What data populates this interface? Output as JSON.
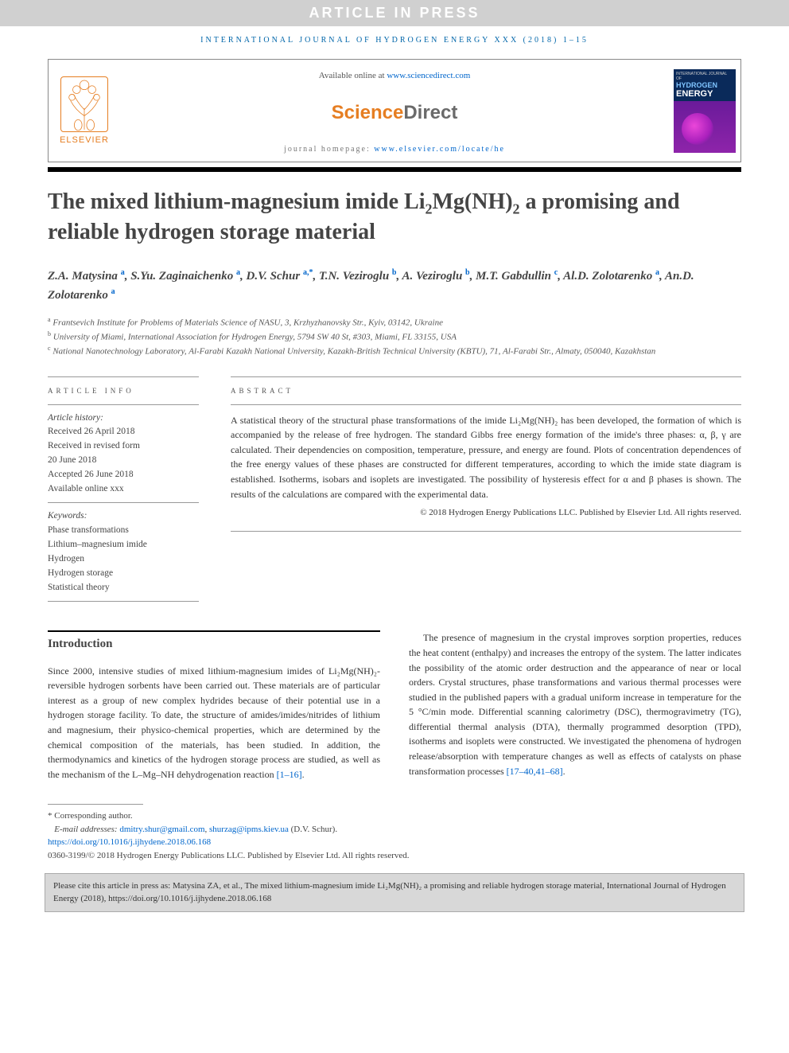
{
  "banner": "ARTICLE IN PRESS",
  "running_head": "INTERNATIONAL JOURNAL OF HYDROGEN ENERGY XXX (2018) 1–15",
  "header": {
    "elsevier": "ELSEVIER",
    "available": "Available online at ",
    "sd_url": "www.sciencedirect.com",
    "sd_word1": "Science",
    "sd_word2": "Direct",
    "homepage_label": "journal homepage: ",
    "homepage_url": "www.elsevier.com/locate/he",
    "cover_line1": "INTERNATIONAL JOURNAL OF",
    "cover_line2": "HYDROGEN",
    "cover_line3": "ENERGY"
  },
  "title_parts": {
    "p1": "The mixed lithium-magnesium imide Li",
    "s1": "2",
    "p2": "Mg(NH)",
    "s2": "2",
    "p3": " a promising and reliable hydrogen storage material"
  },
  "authors": [
    {
      "name": "Z.A. Matysina",
      "aff": "a"
    },
    {
      "name": "S.Yu. Zaginaichenko",
      "aff": "a"
    },
    {
      "name": "D.V. Schur",
      "aff": "a,*"
    },
    {
      "name": "T.N. Veziroglu",
      "aff": "b"
    },
    {
      "name": "A. Veziroglu",
      "aff": "b"
    },
    {
      "name": "M.T. Gabdullin",
      "aff": "c"
    },
    {
      "name": "Al.D. Zolotarenko",
      "aff": "a"
    },
    {
      "name": "An.D. Zolotarenko",
      "aff": "a"
    }
  ],
  "affiliations": [
    {
      "sup": "a",
      "text": "Frantsevich Institute for Problems of Materials Science of NASU, 3, Krzhyzhanovsky Str., Kyiv, 03142, Ukraine"
    },
    {
      "sup": "b",
      "text": "University of Miami, International Association for Hydrogen Energy, 5794 SW 40 St, #303, Miami, FL 33155, USA"
    },
    {
      "sup": "c",
      "text": "National Nanotechnology Laboratory, Al-Farabi Kazakh National University, Kazakh-British Technical University (KBTU), 71, Al-Farabi Str., Almaty, 050040, Kazakhstan"
    }
  ],
  "article_info": {
    "head": "ARTICLE INFO",
    "history_label": "Article history:",
    "history": [
      "Received 26 April 2018",
      "Received in revised form",
      "20 June 2018",
      "Accepted 26 June 2018",
      "Available online xxx"
    ],
    "keywords_label": "Keywords:",
    "keywords": [
      "Phase transformations",
      "Lithium–magnesium imide",
      "Hydrogen",
      "Hydrogen storage",
      "Statistical theory"
    ]
  },
  "abstract": {
    "head": "ABSTRACT",
    "text": "A statistical theory of the structural phase transformations of the imide Li₂Mg(NH)₂ has been developed, the formation of which is accompanied by the release of free hydrogen. The standard Gibbs free energy formation of the imide's three phases: α, β, γ are calculated. Their dependencies on composition, temperature, pressure, and energy are found. Plots of concentration dependences of the free energy values of these phases are constructed for different temperatures, according to which the imide state diagram is established. Isotherms, isobars and isoplets are investigated. The possibility of hysteresis effect for α and β phases is shown. The results of the calculations are compared with the experimental data.",
    "copyright": "© 2018 Hydrogen Energy Publications LLC. Published by Elsevier Ltd. All rights reserved."
  },
  "intro": {
    "head": "Introduction",
    "col1": "Since 2000, intensive studies of mixed lithium-magnesium imides of Li₂Mg(NH)₂-reversible hydrogen sorbents have been carried out. These materials are of particular interest as a group of new complex hydrides because of their potential use in a hydrogen storage facility. To date, the structure of amides/imides/nitrides of lithium and magnesium, their physico-chemical properties, which are determined by the chemical composition of the materials, has been studied. In addition, the thermodynamics and kinetics of the hydrogen storage process are studied, as well as the mechanism of the L–Mg–NH dehydrogenation reaction ",
    "col1_cite": "[1–16]",
    "col1_end": ".",
    "col2": "The presence of magnesium in the crystal improves sorption properties, reduces the heat content (enthalpy) and increases the entropy of the system. The latter indicates the possibility of the atomic order destruction and the appearance of near or local orders. Crystal structures, phase transformations and various thermal processes were studied in the published papers with a gradual uniform increase in temperature for the 5 °C/min mode. Differential scanning calorimetry (DSC), thermogravimetry (TG), differential thermal analysis (DTA), thermally programmed desorption (TPD), isotherms and isoplets were constructed. We investigated the phenomena of hydrogen release/absorption with temperature changes as well as effects of catalysts on phase transformation processes ",
    "col2_cite": "[17–40,41–68]",
    "col2_end": "."
  },
  "footnotes": {
    "corr": "* Corresponding author.",
    "email_label": "E-mail addresses: ",
    "email1": "dmitry.shur@gmail.com",
    "email2": "shurzag@ipms.kiev.ua",
    "email_tail": " (D.V. Schur).",
    "doi": "https://doi.org/10.1016/j.ijhydene.2018.06.168",
    "issn_line": "0360-3199/© 2018 Hydrogen Energy Publications LLC. Published by Elsevier Ltd. All rights reserved."
  },
  "citebox": "Please cite this article in press as: Matysina ZA, et al., The mixed lithium-magnesium imide Li₂Mg(NH)₂ a promising and reliable hydrogen storage material, International Journal of Hydrogen Energy (2018), https://doi.org/10.1016/j.ijhydene.2018.06.168",
  "colors": {
    "link": "#0066cc",
    "orange": "#e67e22",
    "banner_bg": "#d0d0d0",
    "citebox_bg": "#d8d8d8",
    "cover_top": "#0a2a5a",
    "cover_bottom": "#8e24aa"
  }
}
